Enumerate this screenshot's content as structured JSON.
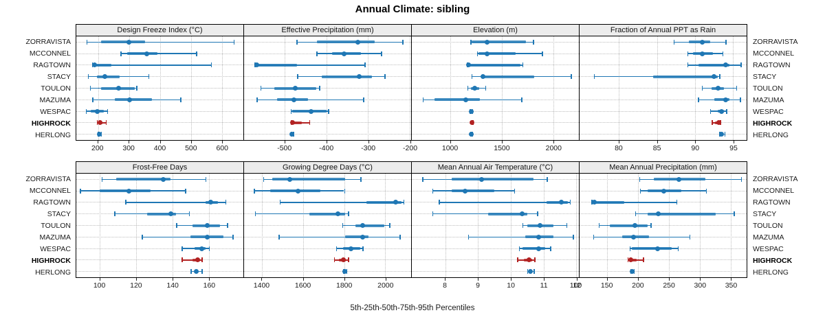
{
  "title": "Annual Climate: sibling",
  "footer": "5th-25th-50th-75th-95th Percentiles",
  "colors": {
    "series": "#1f77b4",
    "highlight": "#b22222",
    "grid": "#bdbdbd",
    "strip_bg": "#ececec",
    "border": "#000000"
  },
  "locations": [
    "ZORRAVISTA",
    "MCCONNEL",
    "RAGTOWN",
    "STACY",
    "TOULON",
    "MAZUMA",
    "WESPAC",
    "HIGHROCK",
    "HERLONG"
  ],
  "highlight_location": "HIGHROCK",
  "chart_data": {
    "type": "percentile-dotplot",
    "percentile_labels": [
      "5th",
      "25th",
      "50th",
      "75th",
      "95th"
    ],
    "grid": "dotted",
    "panels": [
      {
        "title": "Design Freeze Index (°C)",
        "slug": "design-freeze-index",
        "grid_row": 0,
        "xlim": [
          130,
          670
        ],
        "ticks": [
          200,
          300,
          400,
          500,
          600
        ],
        "values": {
          "ZORRAVISTA": [
            163,
            210,
            300,
            352,
            638
          ],
          "MCCONNEL": [
            273,
            295,
            357,
            393,
            517
          ],
          "RAGTOWN": [
            180,
            183,
            190,
            244,
            565
          ],
          "STACY": [
            167,
            196,
            222,
            269,
            363
          ],
          "TOULON": [
            174,
            211,
            266,
            318,
            324
          ],
          "MAZUMA": [
            182,
            255,
            302,
            375,
            466
          ],
          "WESPAC": [
            160,
            177,
            198,
            218,
            229
          ],
          "HIGHROCK": [
            196,
            200,
            206,
            215,
            225
          ],
          "HERLONG": [
            199,
            201,
            204,
            206,
            209
          ]
        }
      },
      {
        "title": "Effective Precipitation (mm)",
        "slug": "effective-precipitation",
        "grid_row": 0,
        "xlim": [
          -598,
          -196
        ],
        "ticks": [
          -500,
          -400,
          -300,
          -200
        ],
        "values": {
          "ZORRAVISTA": [
            -472,
            -422,
            -324,
            -283,
            -217
          ],
          "MCCONNEL": [
            -424,
            -387,
            -357,
            -316,
            -268
          ],
          "RAGTOWN": [
            -573,
            -570,
            -567,
            -470,
            -308
          ],
          "STACY": [
            -470,
            -411,
            -321,
            -291,
            -260
          ],
          "TOULON": [
            -559,
            -526,
            -475,
            -424,
            -417
          ],
          "MAZUMA": [
            -568,
            -518,
            -478,
            -444,
            -311
          ],
          "WESPAC": [
            -486,
            -483,
            -436,
            -399,
            -396
          ],
          "HIGHROCK": [
            -486,
            -484,
            -482,
            -459,
            -441
          ],
          "HERLONG": [
            -485,
            -484,
            -483,
            -482,
            -480
          ]
        }
      },
      {
        "title": "Elevation (m)",
        "slug": "elevation",
        "grid_row": 0,
        "xlim": [
          625,
          2250
        ],
        "ticks": [
          1000,
          1500,
          2000
        ],
        "values": {
          "ZORRAVISTA": [
            1195,
            1210,
            1355,
            1735,
            1805
          ],
          "MCCONNEL": [
            1260,
            1275,
            1355,
            1635,
            1890
          ],
          "RAGTOWN": [
            1160,
            1170,
            1180,
            1680,
            1700
          ],
          "STACY": [
            1205,
            1300,
            1315,
            1815,
            2170
          ],
          "TOULON": [
            1165,
            1200,
            1240,
            1280,
            1340
          ],
          "MAZUMA": [
            730,
            845,
            1150,
            1290,
            1690
          ],
          "WESPAC": [
            1190,
            1196,
            1201,
            1206,
            1212
          ],
          "HIGHROCK": [
            1205,
            1208,
            1210,
            1212,
            1215
          ],
          "HERLONG": [
            1196,
            1199,
            1201,
            1204,
            1207
          ]
        }
      },
      {
        "title": "Fraction of Annual PPT as Rain",
        "slug": "fraction-ppt-rain",
        "grid_row": 0,
        "xlim": [
          74.8,
          96.8
        ],
        "ticks": [
          80,
          85,
          90,
          95
        ],
        "values": {
          "ZORRAVISTA": [
            87.2,
            89.2,
            91.0,
            92.0,
            94.0
          ],
          "MCCONNEL": [
            89.0,
            89.7,
            91.0,
            92.4,
            93.6
          ],
          "RAGTOWN": [
            89.0,
            90.5,
            94.0,
            94.5,
            96.0
          ],
          "STACY": [
            76.7,
            84.5,
            92.5,
            93.0,
            93.2
          ],
          "TOULON": [
            90.9,
            92.2,
            93.0,
            93.8,
            95.4
          ],
          "MAZUMA": [
            90.4,
            92.5,
            94.0,
            94.5,
            95.9
          ],
          "WESPAC": [
            92.0,
            93.0,
            93.5,
            93.8,
            94.1
          ],
          "HIGHROCK": [
            92.2,
            92.6,
            93.1,
            93.2,
            93.3
          ],
          "HERLONG": [
            93.2,
            93.4,
            93.5,
            93.7,
            93.9
          ]
        }
      },
      {
        "title": "Frost-Free Days",
        "slug": "frost-free-days",
        "grid_row": 1,
        "xlim": [
          87,
          179
        ],
        "ticks": [
          100,
          120,
          140,
          160
        ],
        "values": {
          "ZORRAVISTA": [
            101,
            109,
            135,
            139,
            158
          ],
          "MCCONNEL": [
            89,
            100,
            116,
            128,
            147
          ],
          "RAGTOWN": [
            114,
            158,
            161,
            165,
            169
          ],
          "STACY": [
            108,
            126,
            139,
            142,
            149
          ],
          "TOULON": [
            142,
            151,
            159,
            166,
            170
          ],
          "MAZUMA": [
            123,
            150,
            159,
            168,
            173
          ],
          "WESPAC": [
            145,
            152,
            156,
            158,
            160
          ],
          "HIGHROCK": [
            145,
            151,
            154,
            155,
            156
          ],
          "HERLONG": [
            150,
            152,
            153,
            154,
            156
          ]
        }
      },
      {
        "title": "Growing Degree Days (°C)",
        "slug": "growing-degree-days",
        "grid_row": 1,
        "xlim": [
          1312,
          2127
        ],
        "ticks": [
          1400,
          1600,
          1800,
          2000
        ],
        "values": {
          "ZORRAVISTA": [
            1405,
            1450,
            1535,
            1805,
            1880
          ],
          "MCCONNEL": [
            1360,
            1440,
            1575,
            1685,
            1800
          ],
          "RAGTOWN": [
            1485,
            1910,
            2050,
            2080,
            2090
          ],
          "STACY": [
            1365,
            1630,
            1770,
            1805,
            1820
          ],
          "TOULON": [
            1790,
            1855,
            1890,
            1995,
            2020
          ],
          "MAZUMA": [
            1480,
            1805,
            1890,
            1920,
            2070
          ],
          "WESPAC": [
            1760,
            1795,
            1835,
            1880,
            1890
          ],
          "HIGHROCK": [
            1750,
            1775,
            1795,
            1810,
            1820
          ],
          "HERLONG": [
            1795,
            1800,
            1803,
            1807,
            1811
          ]
        }
      },
      {
        "title": "Mean Annual Air Temperature (°C)",
        "slug": "mean-annual-air-temperature",
        "grid_row": 1,
        "xlim": [
          6.98,
          12.08
        ],
        "ticks": [
          8,
          9,
          10,
          11,
          12
        ],
        "values": {
          "ZORRAVISTA": [
            7.3,
            8.2,
            9.1,
            10.7,
            11.1
          ],
          "MCCONNEL": [
            7.6,
            8.2,
            8.6,
            9.5,
            10.1
          ],
          "RAGTOWN": [
            7.8,
            11.1,
            11.55,
            11.75,
            11.8
          ],
          "STACY": [
            7.6,
            9.3,
            10.35,
            10.5,
            10.8
          ],
          "TOULON": [
            10.35,
            10.5,
            10.9,
            11.3,
            11.7
          ],
          "MAZUMA": [
            8.7,
            10.45,
            10.85,
            11.3,
            11.9
          ],
          "WESPAC": [
            10.25,
            10.35,
            10.85,
            11.05,
            11.2
          ],
          "HIGHROCK": [
            10.2,
            10.4,
            10.55,
            10.65,
            10.72
          ],
          "HERLONG": [
            10.5,
            10.55,
            10.6,
            10.65,
            10.7
          ]
        }
      },
      {
        "title": "Mean Annual Precipitation (mm)",
        "slug": "mean-annual-precipitation",
        "grid_row": 1,
        "xlim": [
          105,
          376
        ],
        "ticks": [
          100,
          150,
          200,
          250,
          300,
          350
        ],
        "values": {
          "ZORRAVISTA": [
            202,
            226,
            266,
            309,
            367
          ],
          "MCCONNEL": [
            203,
            215,
            242,
            270,
            310
          ],
          "RAGTOWN": [
            124,
            127,
            129,
            178,
            262
          ],
          "STACY": [
            195,
            215,
            233,
            326,
            355
          ],
          "TOULON": [
            136,
            154,
            195,
            215,
            220
          ],
          "MAZUMA": [
            127,
            174,
            193,
            218,
            283
          ],
          "WESPAC": [
            186,
            190,
            232,
            255,
            264
          ],
          "HIGHROCK": [
            183,
            186,
            188,
            198,
            208
          ],
          "HERLONG": [
            187,
            188,
            190,
            191,
            193
          ]
        }
      }
    ]
  }
}
